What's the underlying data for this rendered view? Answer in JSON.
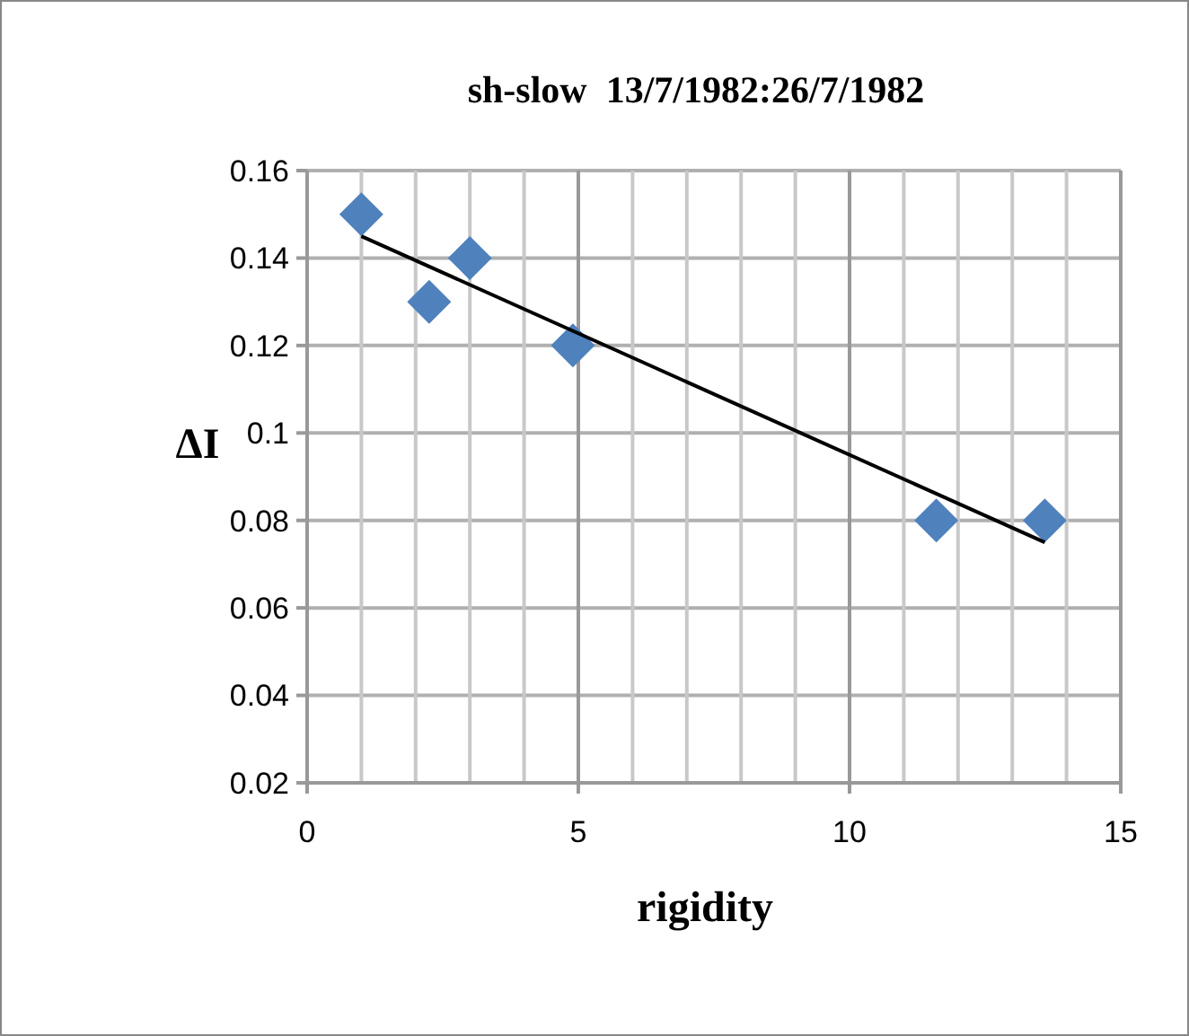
{
  "chart_data": {
    "type": "scatter",
    "title": "sh-slow  13/7/1982:26/7/1982",
    "xlabel": "rigidity",
    "ylabel": "ΔI",
    "series": [
      {
        "color": "#4f81bd",
        "marker": "diamond",
        "x": [
          1,
          2.25,
          3,
          4.9,
          11.6,
          13.6
        ],
        "values": [
          0.15,
          0.13,
          0.14,
          0.12,
          0.08,
          0.08
        ]
      },
      {
        "type": "line",
        "color": "#000000",
        "x": [
          1,
          13.6
        ],
        "values": [
          0.145,
          0.075
        ]
      }
    ],
    "xlim": [
      0,
      15
    ],
    "ylim": [
      0.02,
      0.16
    ],
    "xticks": [
      0,
      {
        "value": 1,
        "label": null
      },
      {
        "value": 2,
        "label": null
      },
      {
        "value": 3,
        "label": null
      },
      {
        "value": 4,
        "label": null
      },
      5,
      {
        "value": 6,
        "label": null
      },
      {
        "value": 7,
        "label": null
      },
      {
        "value": 8,
        "label": null
      },
      {
        "value": 9,
        "label": null
      },
      10,
      {
        "value": 11,
        "label": null
      },
      {
        "value": 12,
        "label": null
      },
      {
        "value": 13,
        "label": null
      },
      {
        "value": 14,
        "label": null
      },
      15
    ],
    "yticks": [
      0.02,
      0.04,
      0.06,
      0.08,
      0.1,
      0.12,
      0.14,
      0.16
    ],
    "grid": true
  }
}
